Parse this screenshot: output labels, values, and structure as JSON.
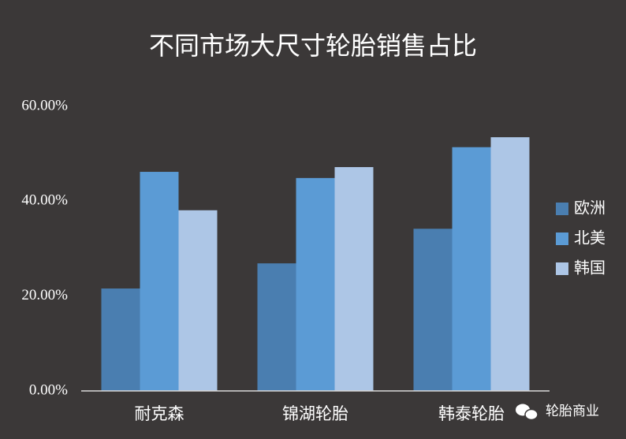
{
  "chart_data": {
    "type": "bar",
    "title": "不同市场大尺寸轮胎销售占比",
    "categories": [
      "耐克森",
      "锦湖轮胎",
      "韩泰轮胎"
    ],
    "series": [
      {
        "name": "欧洲",
        "color": "#4a7eb0",
        "values": [
          21.6,
          26.9,
          34.2
        ]
      },
      {
        "name": "北美",
        "color": "#5b9bd5",
        "values": [
          46.2,
          44.9,
          51.4
        ]
      },
      {
        "name": "韩国",
        "color": "#adc6e6",
        "values": [
          38.1,
          47.2,
          53.5
        ]
      }
    ],
    "ylim": [
      0,
      60
    ],
    "yticks": [
      {
        "value": 0,
        "label": "0.00%"
      },
      {
        "value": 20,
        "label": "20.00%"
      },
      {
        "value": 40,
        "label": "40.00%"
      },
      {
        "value": 60,
        "label": "60.00%"
      }
    ],
    "grid": false,
    "legend": "right",
    "watermark": "轮胎商业"
  }
}
